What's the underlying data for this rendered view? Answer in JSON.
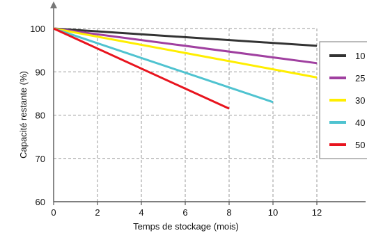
{
  "chart_data": {
    "type": "line",
    "xlabel": "Temps de stockage (mois)",
    "ylabel": "Capacité restante (%)",
    "x_ticks": [
      "0",
      "2",
      "4",
      "6",
      "8",
      "10",
      "12"
    ],
    "y_ticks": [
      "60",
      "70",
      "80",
      "90",
      "100"
    ],
    "xlim": [
      0,
      12
    ],
    "ylim": [
      60,
      100
    ],
    "grid": true,
    "legend_position": "right",
    "series": [
      {
        "name": "10",
        "color": "#333333",
        "x": [
          0,
          12
        ],
        "y": [
          100,
          96
        ]
      },
      {
        "name": "25",
        "color": "#a040a0",
        "x": [
          0,
          12
        ],
        "y": [
          100,
          92
        ]
      },
      {
        "name": "30",
        "color": "#ffee00",
        "x": [
          0,
          12
        ],
        "y": [
          100,
          88.7
        ]
      },
      {
        "name": "40",
        "color": "#4fc3d0",
        "x": [
          0,
          10
        ],
        "y": [
          100,
          83
        ]
      },
      {
        "name": "50",
        "color": "#e8141e",
        "x": [
          0,
          8
        ],
        "y": [
          100,
          81.5
        ]
      }
    ]
  }
}
